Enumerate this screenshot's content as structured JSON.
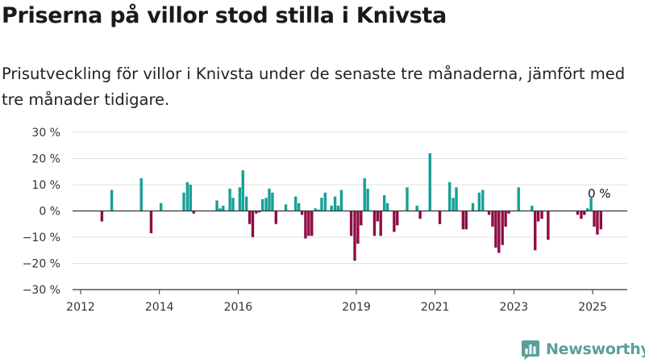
{
  "title": "Priserna på villor stod stilla i Knivsta",
  "subtitle": "Prisutveckling för villor i Knivsta under de senaste tre månaderna, jämfört med tre månader tidigare.",
  "brand": {
    "name": "Newsworthy",
    "logo_icon": "newsworthy-chart-logo-icon"
  },
  "colors": {
    "positive": "#16a097",
    "negative": "#8f0d45",
    "grid": "#e2e2e2",
    "axis": "#333333"
  },
  "chart_data": {
    "type": "bar",
    "title": "Priserna på villor stod stilla i Knivsta",
    "subtitle": "Prisutveckling för villor i Knivsta under de senaste tre månaderna, jämfört med tre månader tidigare.",
    "unit": "%",
    "ylim": [
      -30,
      30
    ],
    "yticks": [
      {
        "value": 30,
        "label": "30 %"
      },
      {
        "value": 20,
        "label": "20 %"
      },
      {
        "value": 10,
        "label": "10 %"
      },
      {
        "value": 0,
        "label": "0 %"
      },
      {
        "value": -10,
        "label": "−10 %"
      },
      {
        "value": -20,
        "label": "−20 %"
      },
      {
        "value": -30,
        "label": "−30 %"
      }
    ],
    "xlim": [
      2012.0,
      2025.92
    ],
    "xticks": [
      {
        "value": 2012,
        "label": "2012"
      },
      {
        "value": 2014,
        "label": "2014"
      },
      {
        "value": 2016,
        "label": "2016"
      },
      {
        "value": 2019,
        "label": "2019"
      },
      {
        "value": 2021,
        "label": "2021"
      },
      {
        "value": 2023,
        "label": "2023"
      },
      {
        "value": 2025,
        "label": "2025"
      }
    ],
    "grid": true,
    "last_label": "0 %",
    "points": [
      {
        "x": 2012.54,
        "y": -4.0
      },
      {
        "x": 2012.79,
        "y": 8.0
      },
      {
        "x": 2013.54,
        "y": 12.5
      },
      {
        "x": 2013.79,
        "y": -8.5
      },
      {
        "x": 2014.04,
        "y": 3.0
      },
      {
        "x": 2014.62,
        "y": 7.0
      },
      {
        "x": 2014.71,
        "y": 11.0
      },
      {
        "x": 2014.79,
        "y": 10.0
      },
      {
        "x": 2014.87,
        "y": -1.0
      },
      {
        "x": 2015.46,
        "y": 4.0
      },
      {
        "x": 2015.54,
        "y": 1.0
      },
      {
        "x": 2015.62,
        "y": 2.0
      },
      {
        "x": 2015.79,
        "y": 8.5
      },
      {
        "x": 2015.87,
        "y": 5.0
      },
      {
        "x": 2016.04,
        "y": 9.0
      },
      {
        "x": 2016.12,
        "y": 15.5
      },
      {
        "x": 2016.21,
        "y": 5.5
      },
      {
        "x": 2016.29,
        "y": -5.0
      },
      {
        "x": 2016.37,
        "y": -10.0
      },
      {
        "x": 2016.46,
        "y": -1.0
      },
      {
        "x": 2016.54,
        "y": -0.5
      },
      {
        "x": 2016.62,
        "y": 4.5
      },
      {
        "x": 2016.71,
        "y": 5.0
      },
      {
        "x": 2016.79,
        "y": 8.5
      },
      {
        "x": 2016.87,
        "y": 7.0
      },
      {
        "x": 2016.96,
        "y": -5.0
      },
      {
        "x": 2017.21,
        "y": 2.5
      },
      {
        "x": 2017.46,
        "y": 5.5
      },
      {
        "x": 2017.54,
        "y": 3.0
      },
      {
        "x": 2017.62,
        "y": -1.5
      },
      {
        "x": 2017.71,
        "y": -10.5
      },
      {
        "x": 2017.79,
        "y": -9.5
      },
      {
        "x": 2017.87,
        "y": -9.5
      },
      {
        "x": 2017.96,
        "y": 1.0
      },
      {
        "x": 2018.04,
        "y": 0.5
      },
      {
        "x": 2018.12,
        "y": 5.0
      },
      {
        "x": 2018.21,
        "y": 7.0
      },
      {
        "x": 2018.37,
        "y": 2.0
      },
      {
        "x": 2018.46,
        "y": 5.5
      },
      {
        "x": 2018.54,
        "y": 2.0
      },
      {
        "x": 2018.62,
        "y": 8.0
      },
      {
        "x": 2018.87,
        "y": -9.5
      },
      {
        "x": 2018.96,
        "y": -19.0
      },
      {
        "x": 2019.04,
        "y": -12.5
      },
      {
        "x": 2019.12,
        "y": -5.5
      },
      {
        "x": 2019.21,
        "y": 12.5
      },
      {
        "x": 2019.29,
        "y": 8.5
      },
      {
        "x": 2019.46,
        "y": -9.5
      },
      {
        "x": 2019.54,
        "y": -4.0
      },
      {
        "x": 2019.62,
        "y": -9.5
      },
      {
        "x": 2019.71,
        "y": 6.0
      },
      {
        "x": 2019.79,
        "y": 3.0
      },
      {
        "x": 2019.96,
        "y": -8.0
      },
      {
        "x": 2020.04,
        "y": -5.5
      },
      {
        "x": 2020.29,
        "y": 9.0
      },
      {
        "x": 2020.54,
        "y": 2.0
      },
      {
        "x": 2020.62,
        "y": -3.0
      },
      {
        "x": 2020.87,
        "y": 22.0
      },
      {
        "x": 2021.12,
        "y": -5.0
      },
      {
        "x": 2021.37,
        "y": 11.0
      },
      {
        "x": 2021.46,
        "y": 5.0
      },
      {
        "x": 2021.54,
        "y": 9.0
      },
      {
        "x": 2021.71,
        "y": -7.0
      },
      {
        "x": 2021.79,
        "y": -7.0
      },
      {
        "x": 2021.96,
        "y": 3.0
      },
      {
        "x": 2022.12,
        "y": 7.0
      },
      {
        "x": 2022.21,
        "y": 8.0
      },
      {
        "x": 2022.37,
        "y": -1.5
      },
      {
        "x": 2022.46,
        "y": -6.0
      },
      {
        "x": 2022.54,
        "y": -14.0
      },
      {
        "x": 2022.62,
        "y": -16.0
      },
      {
        "x": 2022.71,
        "y": -13.0
      },
      {
        "x": 2022.79,
        "y": -6.0
      },
      {
        "x": 2022.87,
        "y": -1.0
      },
      {
        "x": 2023.12,
        "y": 9.0
      },
      {
        "x": 2023.46,
        "y": 2.0
      },
      {
        "x": 2023.54,
        "y": -15.0
      },
      {
        "x": 2023.62,
        "y": -4.0
      },
      {
        "x": 2023.71,
        "y": -3.0
      },
      {
        "x": 2023.87,
        "y": -11.0
      },
      {
        "x": 2024.62,
        "y": -1.5
      },
      {
        "x": 2024.71,
        "y": -3.0
      },
      {
        "x": 2024.79,
        "y": -1.5
      },
      {
        "x": 2024.87,
        "y": 1.0
      },
      {
        "x": 2024.96,
        "y": 5.0
      },
      {
        "x": 2025.04,
        "y": -6.0
      },
      {
        "x": 2025.12,
        "y": -9.0
      },
      {
        "x": 2025.21,
        "y": -7.0
      }
    ]
  }
}
